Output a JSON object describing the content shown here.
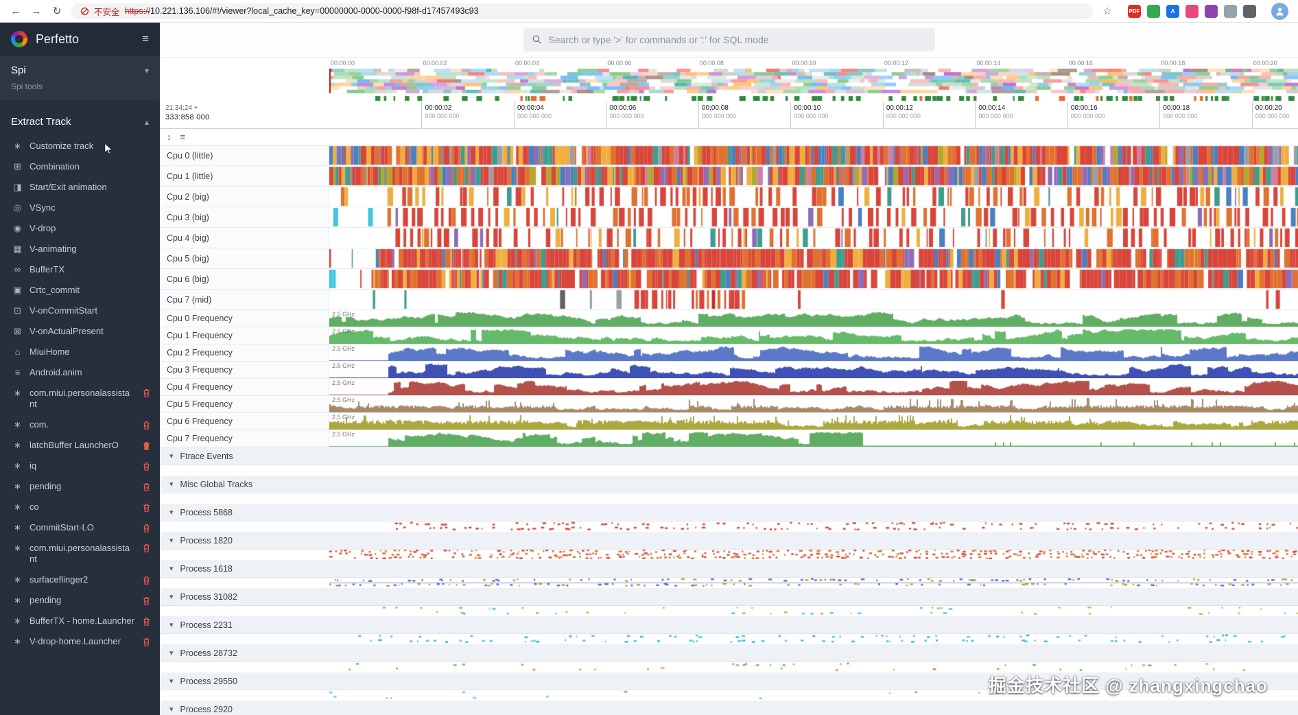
{
  "browser": {
    "security_label": "不安全",
    "url_scheme": "https://",
    "url_rest": "10.221.136.106/#!/viewer?local_cache_key=00000000-0000-0000-f98f-d17457493c93",
    "extensions": [
      {
        "name": "pdf-extension-icon",
        "label": "PDF",
        "bg": "#d93025"
      },
      {
        "name": "green-extension-icon",
        "label": "",
        "bg": "#34a853"
      },
      {
        "name": "translate-extension-icon",
        "label": "A",
        "bg": "#1a73e8"
      },
      {
        "name": "pink-extension-icon",
        "label": "",
        "bg": "#e8467c"
      },
      {
        "name": "purple-extension-icon",
        "label": "",
        "bg": "#8e44ad"
      },
      {
        "name": "notes-extension-icon",
        "label": "",
        "bg": "#90a4ae"
      },
      {
        "name": "puzzle-extension-icon",
        "label": "",
        "bg": "#5f6368"
      }
    ]
  },
  "icons": {
    "back": "←",
    "forward": "→",
    "reload": "↻",
    "star": "☆",
    "hamburger": "≡",
    "spi_chevron": "▾",
    "extract_chevron": "▴",
    "sort": "↕",
    "filter": "≡",
    "group_chevron": "▾"
  },
  "sidebar": {
    "app_title": "Perfetto",
    "spi_title": "Spi",
    "spi_subtitle": "Spi tools",
    "extract_track_title": "Extract Track",
    "items": [
      {
        "label": "Customize track",
        "icon": "customize-track-icon",
        "glyph": "∗"
      },
      {
        "label": "Combination",
        "icon": "combination-icon",
        "glyph": "⊞"
      },
      {
        "label": "Start/Exit animation",
        "icon": "start-exit-animation-icon",
        "glyph": "◨"
      },
      {
        "label": "VSync",
        "icon": "vsync-icon",
        "glyph": "◎"
      },
      {
        "label": "V-drop",
        "icon": "v-drop-icon",
        "glyph": "◉"
      },
      {
        "label": "V-animating",
        "icon": "v-animating-icon",
        "glyph": "▦"
      },
      {
        "label": "BufferTX",
        "icon": "buffertx-icon",
        "glyph": "∞"
      },
      {
        "label": "Crtc_commit",
        "icon": "crtc-commit-icon",
        "glyph": "▣"
      },
      {
        "label": "V-onCommitStart",
        "icon": "v-oncommitstart-icon",
        "glyph": "⊡"
      },
      {
        "label": "V-onActualPresent",
        "icon": "v-onactualpresent-icon",
        "glyph": "⊠"
      },
      {
        "label": "MiuiHome",
        "icon": "miuihome-icon",
        "glyph": "⌂"
      },
      {
        "label": "Android.anim",
        "icon": "android-anim-icon",
        "glyph": "≡"
      }
    ],
    "removable_items": [
      {
        "label": "com.miui.personalassistant",
        "icon": "track-asterisk-icon",
        "glyph": "∗",
        "wrap": true
      },
      {
        "label": "com.",
        "icon": "track-asterisk-icon",
        "glyph": "∗"
      },
      {
        "label": "latchBuffer LauncherO",
        "icon": "track-asterisk-icon",
        "glyph": "∗",
        "trash_filled": true
      },
      {
        "label": "iq",
        "icon": "track-asterisk-icon",
        "glyph": "∗"
      },
      {
        "label": "pending",
        "icon": "track-asterisk-icon",
        "glyph": "∗"
      },
      {
        "label": "co",
        "icon": "track-asterisk-icon",
        "glyph": "∗"
      },
      {
        "label": "CommitStart-LO",
        "icon": "track-asterisk-icon",
        "glyph": "∗"
      },
      {
        "label": "com.miui.personalassistant",
        "icon": "track-asterisk-icon",
        "glyph": "∗",
        "wrap": true
      },
      {
        "label": "surfaceflinger2",
        "icon": "track-asterisk-icon",
        "glyph": "∗"
      },
      {
        "label": "pending",
        "icon": "track-asterisk-icon",
        "glyph": "∗"
      },
      {
        "label": "BufferTX - home.Launcher",
        "icon": "track-asterisk-icon",
        "glyph": "∗"
      },
      {
        "label": "V-drop-home.Launcher",
        "icon": "track-asterisk-icon",
        "glyph": "∗"
      }
    ]
  },
  "topbar": {
    "search_placeholder": "Search or type '>' for commands or ':' for SQL mode"
  },
  "timeline": {
    "total_seconds": 21,
    "clock_primary": "21:34:24 +",
    "clock_secondary": "333:858 000",
    "overview_ticks": [
      "00:00:00",
      "00:00:02",
      "00:00:04",
      "00:00:06",
      "00:00:08",
      "00:00:10",
      "00:00:12",
      "00:00:14",
      "00:00:16",
      "00:00:18",
      "00:00:20"
    ],
    "ruler_ticks": [
      {
        "time": "00:00:02",
        "sub": "000 000 000"
      },
      {
        "time": "00:00:04",
        "sub": "000 000 000"
      },
      {
        "time": "00:00:06",
        "sub": "000 000 000"
      },
      {
        "time": "00:00:08",
        "sub": "000 000 000"
      },
      {
        "time": "00:00:10",
        "sub": "000 000 000"
      },
      {
        "time": "00:00:12",
        "sub": "000 000 000"
      },
      {
        "time": "00:00:14",
        "sub": "000 000 000"
      },
      {
        "time": "00:00:16",
        "sub": "000 000 000"
      },
      {
        "time": "00:00:18",
        "sub": "000 000 000"
      },
      {
        "time": "00:00:20",
        "sub": "000 000 000"
      }
    ]
  },
  "tracks": [
    {
      "label": "Cpu 0 (little)",
      "kind": "sched",
      "palette": "little",
      "seed": 11,
      "regions": [
        [
          0,
          1,
          0.97
        ]
      ]
    },
    {
      "label": "Cpu 1 (little)",
      "kind": "sched",
      "palette": "little",
      "seed": 22,
      "regions": [
        [
          0,
          1,
          0.97
        ]
      ]
    },
    {
      "label": "Cpu 2 (big)",
      "kind": "sched",
      "palette": "big",
      "seed": 33,
      "regions": [
        [
          0.012,
          0.018,
          0.9
        ],
        [
          0.06,
          0.42,
          0.82
        ],
        [
          0.44,
          1,
          0.75
        ]
      ]
    },
    {
      "label": "Cpu 3 (big)",
      "kind": "sched",
      "palette": "big",
      "seed": 44,
      "regions": [
        [
          0.004,
          0.007,
          1,
          "cyan"
        ],
        [
          0.04,
          0.044,
          1,
          "cyan"
        ],
        [
          0.06,
          1,
          0.78
        ]
      ]
    },
    {
      "label": "Cpu 4 (big)",
      "kind": "sched",
      "palette": "big",
      "seed": 55,
      "regions": [
        [
          0.06,
          1,
          0.75
        ]
      ]
    },
    {
      "label": "Cpu 5 (big)",
      "kind": "sched",
      "palette": "big",
      "seed": 66,
      "regions": [
        [
          0,
          0.048,
          0.45
        ],
        [
          0.048,
          1,
          0.93
        ]
      ]
    },
    {
      "label": "Cpu 6 (big)",
      "kind": "sched",
      "palette": "big",
      "seed": 77,
      "regions": [
        [
          0,
          0.006,
          0.9,
          "cyan"
        ],
        [
          0.006,
          0.045,
          0.5
        ],
        [
          0.045,
          1,
          0.9
        ]
      ]
    },
    {
      "label": "Cpu 7 (mid)",
      "kind": "sched",
      "palette": "mid",
      "seed": 88,
      "regions": [
        [
          0.015,
          0.31,
          0.2
        ],
        [
          0.315,
          0.43,
          0.85,
          "red"
        ],
        [
          0.46,
          0.7,
          0.05
        ],
        [
          0.7,
          0.93,
          0.03
        ],
        [
          0.94,
          1,
          0.55,
          "red"
        ]
      ]
    },
    {
      "label": "Cpu 0 Frequency",
      "kind": "freq",
      "value_label": "2.5 GHz",
      "color": "#5fae63",
      "seed": 101,
      "freq": {}
    },
    {
      "label": "Cpu 1 Frequency",
      "kind": "freq",
      "value_label": "2.5 GHz",
      "color": "#66bb6a",
      "seed": 102,
      "freq": {}
    },
    {
      "label": "Cpu 2 Frequency",
      "kind": "freq",
      "value_label": "2.5 GHz",
      "color": "#5b79c9",
      "seed": 103,
      "freq": {
        "start": 0.06
      }
    },
    {
      "label": "Cpu 3 Frequency",
      "kind": "freq",
      "value_label": "2.5 GHz",
      "color": "#3f51b5",
      "seed": 104,
      "freq": {
        "start": 0.06
      }
    },
    {
      "label": "Cpu 4 Frequency",
      "kind": "freq",
      "value_label": "2.5 GHz",
      "color": "#b5504b",
      "seed": 105,
      "freq": {
        "start": 0.06
      }
    },
    {
      "label": "Cpu 5 Frequency",
      "kind": "freq",
      "value_label": "2.5 GHz",
      "color": "#a98a68",
      "seed": 106,
      "freq": {
        "low": 0.5
      }
    },
    {
      "label": "Cpu 6 Frequency",
      "kind": "freq",
      "value_label": "2.5 GHz",
      "color": "#aaa83e",
      "seed": 107,
      "freq": {
        "low": 0.65
      }
    },
    {
      "label": "Cpu 7 Frequency",
      "kind": "freq",
      "value_label": "2.5 GHz",
      "color": "#5fae63",
      "seed": 108,
      "freq": {
        "start": 0.06,
        "end": 0.55
      }
    }
  ],
  "groups": [
    {
      "label": "Ftrace Events",
      "seed": 301,
      "scatter": null
    },
    {
      "label": "Misc Global Tracks",
      "seed": 302,
      "scatter": null
    },
    {
      "label": "Process 5868",
      "seed": 303,
      "scatter": {
        "colors": [
          "#d9453a"
        ],
        "density": 0.5,
        "start": 0.06,
        "bands": 2
      }
    },
    {
      "label": "Process 1820",
      "seed": 304,
      "scatter": {
        "colors": [
          "#d9453a",
          "#e0712f"
        ],
        "density": 0.75,
        "start": 0,
        "bands": 3
      }
    },
    {
      "label": "Process 1618",
      "seed": 305,
      "scatter": {
        "colors": [
          "#5c6bc0",
          "#b5a832"
        ],
        "density": 0.5,
        "start": 0,
        "bands": 2,
        "line": "#8a94d8"
      }
    },
    {
      "label": "Process 31082",
      "seed": 306,
      "scatter": {
        "colors": [
          "#c9b33b",
          "#4fc3f7"
        ],
        "density": 0.12,
        "start": 0.03,
        "bands": 2
      }
    },
    {
      "label": "Process 2231",
      "seed": 307,
      "scatter": {
        "colors": [
          "#4fc3f7",
          "#29b6f6"
        ],
        "density": 0.3,
        "start": 0.03,
        "bands": 2
      }
    },
    {
      "label": "Process 28732",
      "seed": 308,
      "scatter": {
        "colors": [
          "#e57373",
          "#ef9a9a",
          "#66bb6a"
        ],
        "density": 0.1,
        "start": 0.02,
        "bands": 2
      }
    },
    {
      "label": "Process 29550",
      "seed": 309,
      "scatter": {
        "colors": [
          "#9e9e9e",
          "#80cbc4"
        ],
        "density": 0.05,
        "start": 0,
        "bands": 2
      }
    },
    {
      "label": "Process 2920",
      "seed": 310,
      "scatter": {
        "colors": [
          "#9e9e9e",
          "#4fc3f7"
        ],
        "density": 0.07,
        "start": 0,
        "bands": 1
      }
    }
  ],
  "watermark": "掘金技术社区 @ zhangxingchao"
}
